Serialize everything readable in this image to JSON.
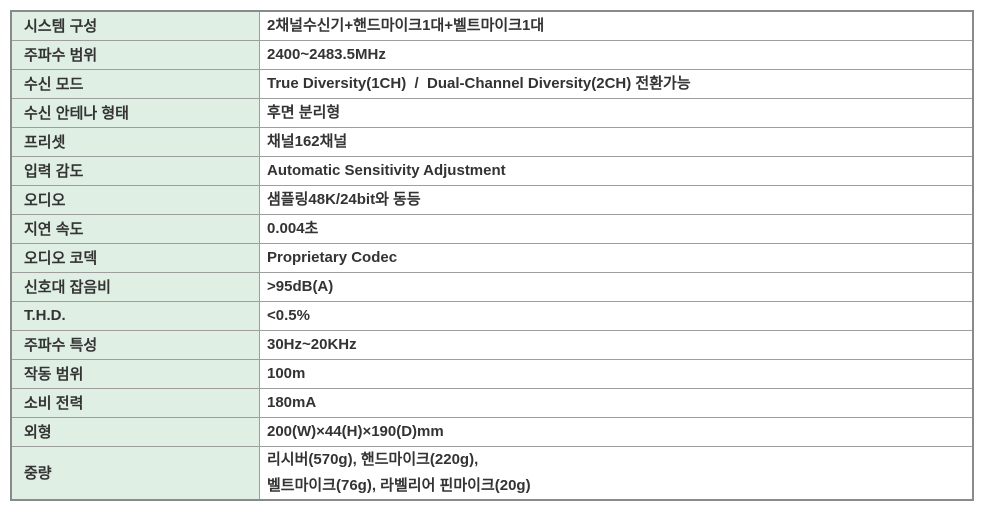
{
  "colors": {
    "label_cell_bg": "#e0efe4",
    "inner_border": "#9e9e9e",
    "outer_border": "#8a8a8a",
    "text": "#333333"
  },
  "table": {
    "rows": [
      {
        "label": "시스템 구성",
        "value": "2채널수신기+핸드마이크1대+벨트마이크1대"
      },
      {
        "label": "주파수 범위",
        "value": "2400~2483.5MHz"
      },
      {
        "label": "수신 모드",
        "value": "True Diversity(1CH)  /  Dual-Channel Diversity(2CH) 전환가능"
      },
      {
        "label": "수신 안테나 형태",
        "value": "후면 분리형"
      },
      {
        "label": "프리셋",
        "value": "채널162채널"
      },
      {
        "label": "입력 감도",
        "value": "Automatic Sensitivity Adjustment"
      },
      {
        "label": "오디오",
        "value": "샘플링48K/24bit와 동등"
      },
      {
        "label": "지연 속도",
        "value": "0.004초"
      },
      {
        "label": "오디오 코덱",
        "value": "Proprietary Codec"
      },
      {
        "label": "신호대 잡음비",
        "value": ">95dB(A)"
      },
      {
        "label": "T.H.D.",
        "value": "<0.5%"
      },
      {
        "label": "주파수 특성",
        "value": "30Hz~20KHz"
      },
      {
        "label": "작동 범위",
        "value": "100m"
      },
      {
        "label": "소비 전력",
        "value": "180mA"
      },
      {
        "label": "외형",
        "value": "200(W)×44(H)×190(D)mm"
      },
      {
        "label": "중량",
        "value": "리시버(570g), 핸드마이크(220g),\n벨트마이크(76g), 라벨리어 핀마이크(20g)"
      }
    ]
  }
}
